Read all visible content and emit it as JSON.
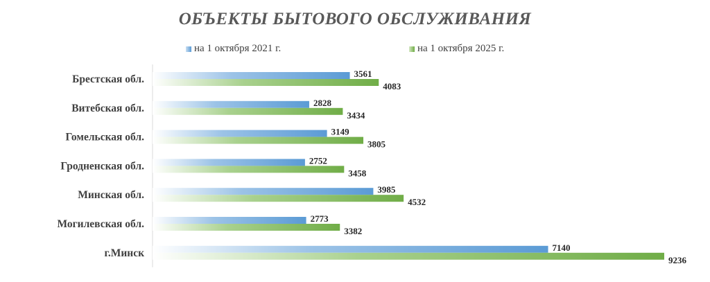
{
  "title": "ОБЪЕКТЫ БЫТОВОГО ОБСЛУЖИВАНИЯ",
  "chart_data": {
    "type": "bar",
    "orientation": "horizontal",
    "categories": [
      "Брестская обл.",
      "Витебская обл.",
      "Гомельская обл.",
      "Гродненская обл.",
      "Минская обл.",
      "Могилевская обл.",
      "г.Минск"
    ],
    "series": [
      {
        "name": "на 1 октября 2021 г.",
        "values": [
          3561,
          2828,
          3149,
          2752,
          3985,
          2773,
          7140
        ],
        "color": "#5b9bd5"
      },
      {
        "name": "на 1 октября 2025 г.",
        "values": [
          4083,
          3434,
          3805,
          3458,
          4532,
          3382,
          9236
        ],
        "color": "#70ad47"
      }
    ],
    "xlim": [
      0,
      9236
    ],
    "grid": false,
    "legend_position": "top"
  }
}
